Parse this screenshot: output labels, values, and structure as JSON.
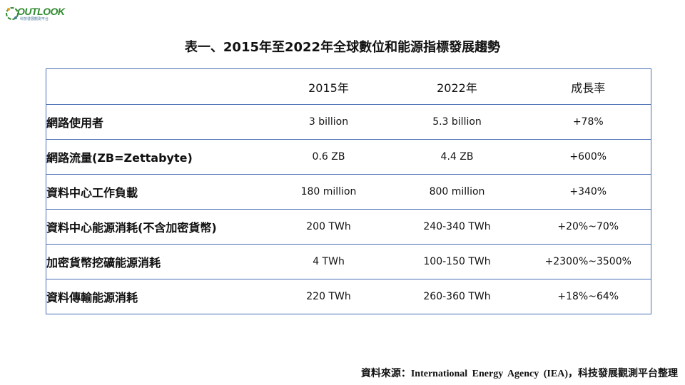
{
  "logo": {
    "wordmark": "OUTLOOK",
    "subtitle": "科技發展觀測平台",
    "colors": {
      "green": "#2f8a2f",
      "blue": "#4a7a9a",
      "orange": "#e3a12a"
    }
  },
  "title": "表一、2015年至2022年全球數位和能源指標發展趨勢",
  "table": {
    "headers": [
      "",
      "2015年",
      "2022年",
      "成長率"
    ],
    "rows": [
      {
        "label": "網路使用者",
        "y2015": "3 billion",
        "y2022": "5.3 billion",
        "growth": "+78%"
      },
      {
        "label": "網路流量(ZB=Zettabyte)",
        "y2015": "0.6 ZB",
        "y2022": "4.4 ZB",
        "growth": "+600%"
      },
      {
        "label": "資料中心工作負載",
        "y2015": "180 million",
        "y2022": "800 million",
        "growth": "+340%"
      },
      {
        "label": "資料中心能源消耗(不含加密貨幣)",
        "y2015": "200 TWh",
        "y2022": "240-340 TWh",
        "growth": "+20%~70%"
      },
      {
        "label": "加密貨幣挖礦能源消耗",
        "y2015": "4 TWh",
        "y2022": "100-150 TWh",
        "growth": "+2300%~3500%"
      },
      {
        "label": "資料傳輸能源消耗",
        "y2015": "220 TWh",
        "y2022": "260-360 TWh",
        "growth": "+18%~64%"
      }
    ],
    "border_color": "#4a6fb5"
  },
  "source": {
    "prefix": "資料來源：",
    "agency": "International  Energy  Agency  (IEA)",
    "suffix": "，科技發展觀測平台整理"
  }
}
